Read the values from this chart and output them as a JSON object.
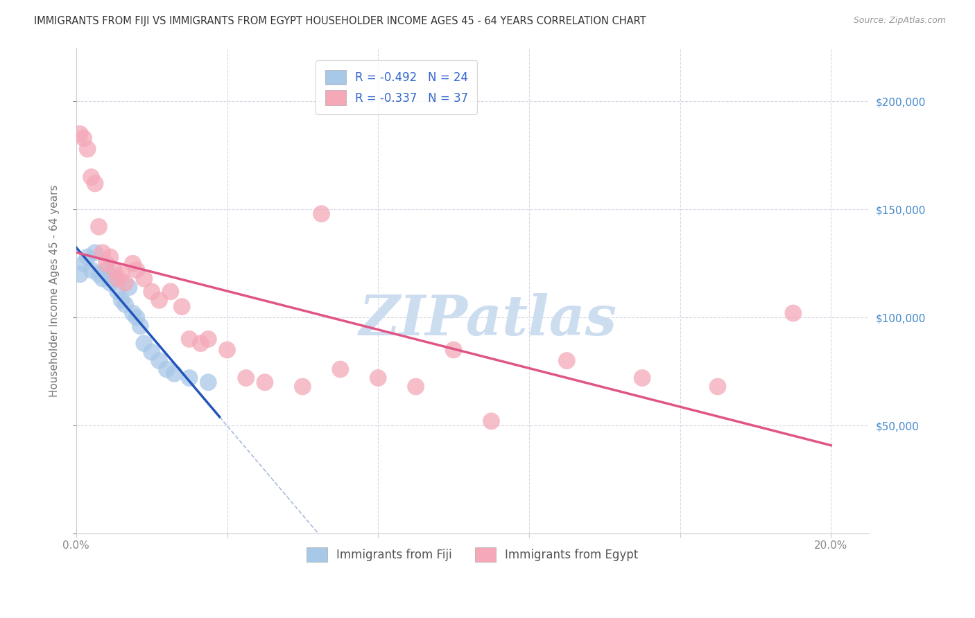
{
  "title": "IMMIGRANTS FROM FIJI VS IMMIGRANTS FROM EGYPT HOUSEHOLDER INCOME AGES 45 - 64 YEARS CORRELATION CHART",
  "source": "Source: ZipAtlas.com",
  "ylabel": "Householder Income Ages 45 - 64 years",
  "xlim": [
    0.0,
    0.21
  ],
  "ylim": [
    0,
    225000
  ],
  "fiji_color": "#a8c8e8",
  "egypt_color": "#f4a8b8",
  "fiji_line_color": "#2255bb",
  "egypt_line_color": "#e05585",
  "diagonal_color": "#aabbdd",
  "watermark_color": "#ccddf0",
  "watermark": "ZIPatlas",
  "legend_fiji_R": "-0.492",
  "legend_fiji_N": "24",
  "legend_egypt_R": "-0.337",
  "legend_egypt_N": "37",
  "fiji_scatter": [
    [
      0.001,
      120000
    ],
    [
      0.002,
      125000
    ],
    [
      0.003,
      128000
    ],
    [
      0.004,
      122000
    ],
    [
      0.005,
      130000
    ],
    [
      0.006,
      120000
    ],
    [
      0.007,
      118000
    ],
    [
      0.008,
      122000
    ],
    [
      0.009,
      116000
    ],
    [
      0.01,
      118000
    ],
    [
      0.011,
      112000
    ],
    [
      0.012,
      108000
    ],
    [
      0.013,
      106000
    ],
    [
      0.014,
      114000
    ],
    [
      0.015,
      102000
    ],
    [
      0.016,
      100000
    ],
    [
      0.017,
      96000
    ],
    [
      0.018,
      88000
    ],
    [
      0.02,
      84000
    ],
    [
      0.022,
      80000
    ],
    [
      0.024,
      76000
    ],
    [
      0.026,
      74000
    ],
    [
      0.03,
      72000
    ],
    [
      0.035,
      70000
    ]
  ],
  "egypt_scatter": [
    [
      0.001,
      185000
    ],
    [
      0.002,
      183000
    ],
    [
      0.003,
      178000
    ],
    [
      0.004,
      165000
    ],
    [
      0.005,
      162000
    ],
    [
      0.006,
      142000
    ],
    [
      0.007,
      130000
    ],
    [
      0.008,
      125000
    ],
    [
      0.009,
      128000
    ],
    [
      0.01,
      122000
    ],
    [
      0.011,
      118000
    ],
    [
      0.012,
      120000
    ],
    [
      0.013,
      116000
    ],
    [
      0.015,
      125000
    ],
    [
      0.016,
      122000
    ],
    [
      0.018,
      118000
    ],
    [
      0.02,
      112000
    ],
    [
      0.022,
      108000
    ],
    [
      0.025,
      112000
    ],
    [
      0.028,
      105000
    ],
    [
      0.03,
      90000
    ],
    [
      0.033,
      88000
    ],
    [
      0.035,
      90000
    ],
    [
      0.04,
      85000
    ],
    [
      0.045,
      72000
    ],
    [
      0.05,
      70000
    ],
    [
      0.06,
      68000
    ],
    [
      0.065,
      148000
    ],
    [
      0.07,
      76000
    ],
    [
      0.08,
      72000
    ],
    [
      0.09,
      68000
    ],
    [
      0.1,
      85000
    ],
    [
      0.11,
      52000
    ],
    [
      0.13,
      80000
    ],
    [
      0.15,
      72000
    ],
    [
      0.17,
      68000
    ],
    [
      0.19,
      102000
    ]
  ],
  "background_color": "#ffffff",
  "grid_color": "#d8d8e8"
}
